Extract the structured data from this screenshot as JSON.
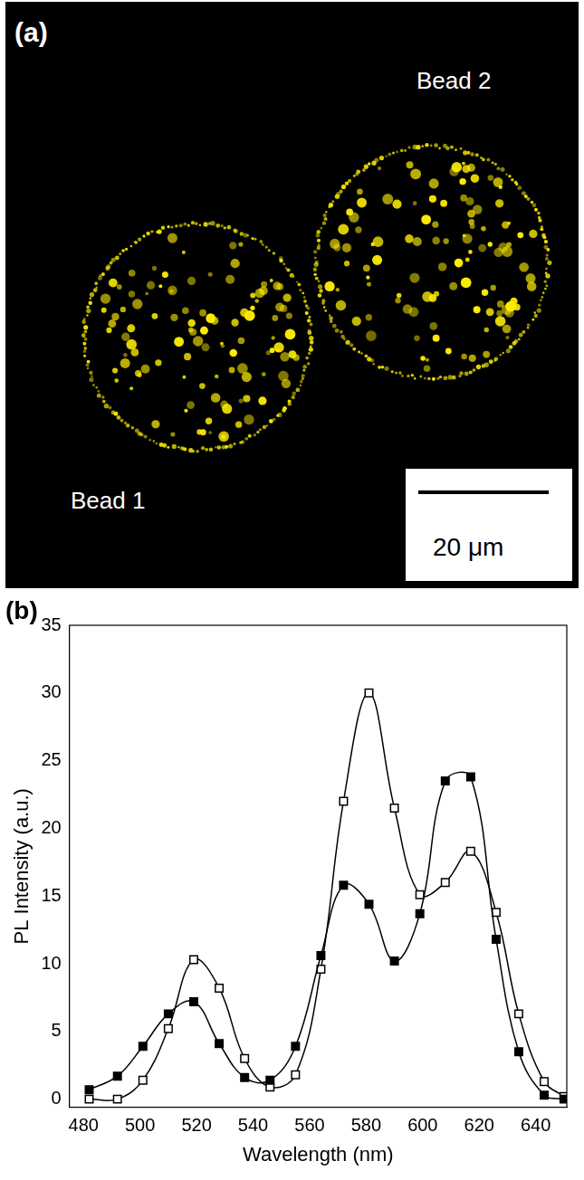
{
  "image_panel": {
    "label": "(a)",
    "bead_labels": [
      "Bead 1",
      "Bead 2"
    ],
    "scale_bar": "20 μm"
  },
  "chart_data": {
    "label": "(b)",
    "type": "line",
    "x_label": "Wavelength (nm)",
    "y_label": "PL Intensity (a.u.)",
    "xlim": [
      475,
      651
    ],
    "xticks": [
      480,
      500,
      520,
      540,
      560,
      580,
      600,
      620,
      640
    ],
    "ylim": [
      -0.6,
      35
    ],
    "yticks": [
      0,
      5,
      10,
      15,
      20,
      25,
      30,
      35
    ],
    "grid": false,
    "series": [
      {
        "color": "#000000",
        "marker": "filled_square",
        "x": [
          482,
          492,
          501,
          510,
          519,
          528,
          537,
          546,
          555,
          564,
          572,
          581,
          590,
          599,
          608,
          617,
          626,
          634,
          643,
          650
        ],
        "values": [
          0.7,
          1.7,
          3.9,
          6.3,
          7.2,
          4.1,
          1.6,
          1.4,
          3.9,
          10.6,
          15.8,
          14.4,
          10.2,
          13.7,
          23.5,
          23.8,
          11.8,
          3.5,
          0.3,
          0
        ]
      },
      {
        "color": "#000000",
        "marker": "open_square",
        "x": [
          482,
          492,
          501,
          510,
          519,
          528,
          537,
          546,
          555,
          564,
          572,
          581,
          590,
          599,
          608,
          617,
          626,
          634,
          643,
          650
        ],
        "values": [
          0,
          0,
          1.4,
          5.2,
          10.3,
          8.2,
          3,
          0.9,
          1.8,
          9.6,
          22,
          30,
          21.5,
          15.1,
          16,
          18.3,
          13.8,
          6.3,
          1.3,
          0.2
        ]
      }
    ]
  }
}
